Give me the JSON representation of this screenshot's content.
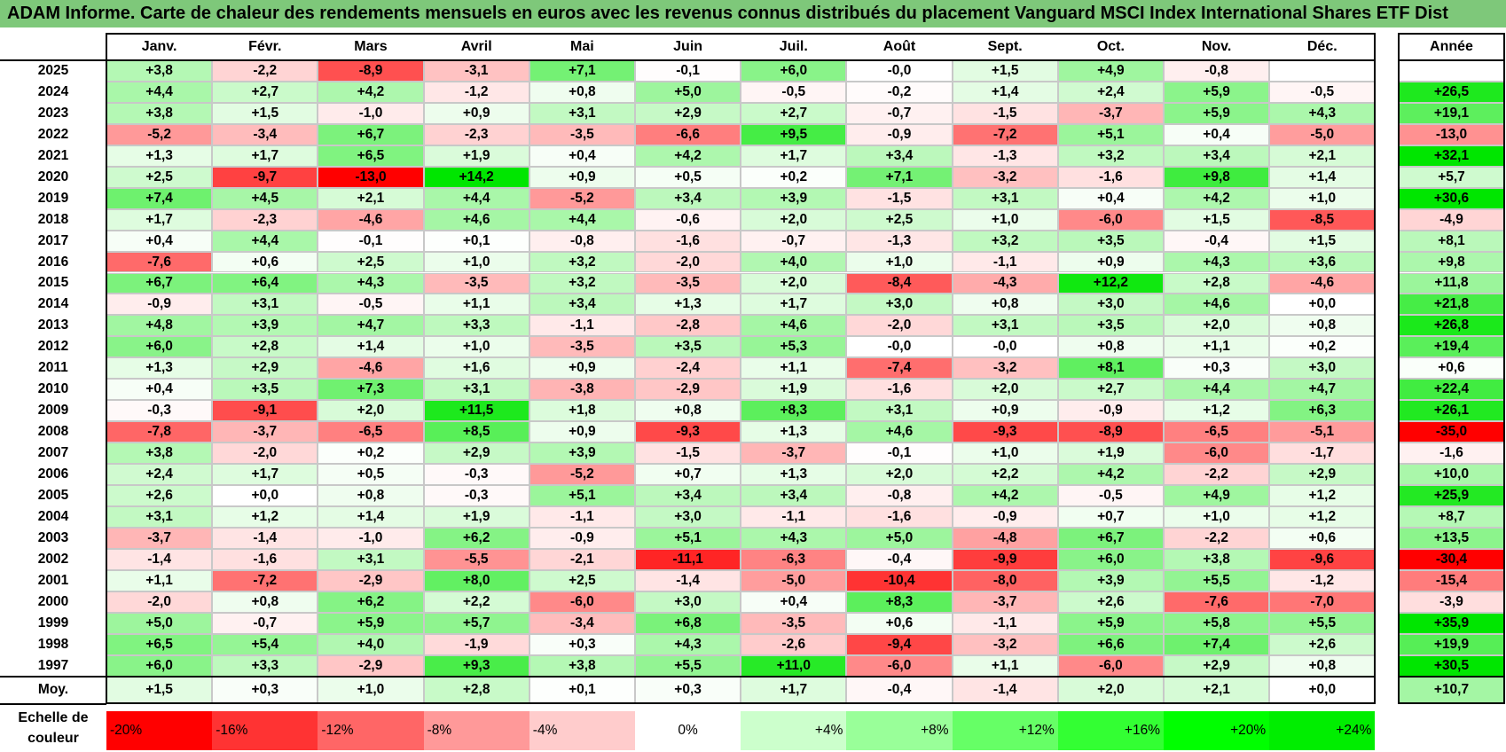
{
  "title": "ADAM Informe. Carte de chaleur des rendements mensuels en euros avec les revenus connus distribués du placement Vanguard MSCI Index International Shares ETF Dist",
  "chart_data": {
    "type": "heatmap",
    "title": "ADAM Informe. Carte de chaleur des rendements mensuels en euros avec les revenus connus distribués du placement Vanguard MSCI Index International Shares ETF Dist",
    "months": [
      "Janv.",
      "Févr.",
      "Mars",
      "Avril",
      "Mai",
      "Juin",
      "Juil.",
      "Août",
      "Sept.",
      "Oct.",
      "Nov.",
      "Déc."
    ],
    "year_header": "Année",
    "rows": [
      {
        "year": "2025",
        "values": [
          "+3,8",
          "-2,2",
          "-8,9",
          "-3,1",
          "+7,1",
          "-0,1",
          "+6,0",
          "-0,0",
          "+1,5",
          "+4,9",
          "-0,8",
          ""
        ],
        "annual": ""
      },
      {
        "year": "2024",
        "values": [
          "+4,4",
          "+2,7",
          "+4,2",
          "-1,2",
          "+0,8",
          "+5,0",
          "-0,5",
          "-0,2",
          "+1,4",
          "+2,4",
          "+5,9",
          "-0,5"
        ],
        "annual": "+26,5"
      },
      {
        "year": "2023",
        "values": [
          "+3,8",
          "+1,5",
          "-1,0",
          "+0,9",
          "+3,1",
          "+2,9",
          "+2,7",
          "-0,7",
          "-1,5",
          "-3,7",
          "+5,9",
          "+4,3"
        ],
        "annual": "+19,1"
      },
      {
        "year": "2022",
        "values": [
          "-5,2",
          "-3,4",
          "+6,7",
          "-2,3",
          "-3,5",
          "-6,6",
          "+9,5",
          "-0,9",
          "-7,2",
          "+5,1",
          "+0,4",
          "-5,0"
        ],
        "annual": "-13,0"
      },
      {
        "year": "2021",
        "values": [
          "+1,3",
          "+1,7",
          "+6,5",
          "+1,9",
          "+0,4",
          "+4,2",
          "+1,7",
          "+3,4",
          "-1,3",
          "+3,2",
          "+3,4",
          "+2,1"
        ],
        "annual": "+32,1"
      },
      {
        "year": "2020",
        "values": [
          "+2,5",
          "-9,7",
          "-13,0",
          "+14,2",
          "+0,9",
          "+0,5",
          "+0,2",
          "+7,1",
          "-3,2",
          "-1,6",
          "+9,8",
          "+1,4"
        ],
        "annual": "+5,7"
      },
      {
        "year": "2019",
        "values": [
          "+7,4",
          "+4,5",
          "+2,1",
          "+4,4",
          "-5,2",
          "+3,4",
          "+3,9",
          "-1,5",
          "+3,1",
          "+0,4",
          "+4,2",
          "+1,0"
        ],
        "annual": "+30,6"
      },
      {
        "year": "2018",
        "values": [
          "+1,7",
          "-2,3",
          "-4,6",
          "+4,6",
          "+4,4",
          "-0,6",
          "+2,0",
          "+2,5",
          "+1,0",
          "-6,0",
          "+1,5",
          "-8,5"
        ],
        "annual": "-4,9"
      },
      {
        "year": "2017",
        "values": [
          "+0,4",
          "+4,4",
          "-0,1",
          "+0,1",
          "-0,8",
          "-1,6",
          "-0,7",
          "-1,3",
          "+3,2",
          "+3,5",
          "-0,4",
          "+1,5"
        ],
        "annual": "+8,1"
      },
      {
        "year": "2016",
        "values": [
          "-7,6",
          "+0,6",
          "+2,5",
          "+1,0",
          "+3,2",
          "-2,0",
          "+4,0",
          "+1,0",
          "-1,1",
          "+0,9",
          "+4,3",
          "+3,6"
        ],
        "annual": "+9,8"
      },
      {
        "year": "2015",
        "values": [
          "+6,7",
          "+6,4",
          "+4,3",
          "-3,5",
          "+3,2",
          "-3,5",
          "+2,0",
          "-8,4",
          "-4,3",
          "+12,2",
          "+2,8",
          "-4,6"
        ],
        "annual": "+11,8"
      },
      {
        "year": "2014",
        "values": [
          "-0,9",
          "+3,1",
          "-0,5",
          "+1,1",
          "+3,4",
          "+1,3",
          "+1,7",
          "+3,0",
          "+0,8",
          "+3,0",
          "+4,6",
          "+0,0"
        ],
        "annual": "+21,8"
      },
      {
        "year": "2013",
        "values": [
          "+4,8",
          "+3,9",
          "+4,7",
          "+3,3",
          "-1,1",
          "-2,8",
          "+4,6",
          "-2,0",
          "+3,1",
          "+3,5",
          "+2,0",
          "+0,8"
        ],
        "annual": "+26,8"
      },
      {
        "year": "2012",
        "values": [
          "+6,0",
          "+2,8",
          "+1,4",
          "+1,0",
          "-3,5",
          "+3,5",
          "+5,3",
          "-0,0",
          "-0,0",
          "+0,8",
          "+1,1",
          "+0,2"
        ],
        "annual": "+19,4"
      },
      {
        "year": "2011",
        "values": [
          "+1,3",
          "+2,9",
          "-4,6",
          "+1,6",
          "+0,9",
          "-2,4",
          "+1,1",
          "-7,4",
          "-3,2",
          "+8,1",
          "+0,3",
          "+3,0"
        ],
        "annual": "+0,6"
      },
      {
        "year": "2010",
        "values": [
          "+0,4",
          "+3,5",
          "+7,3",
          "+3,1",
          "-3,8",
          "-2,9",
          "+1,9",
          "-1,6",
          "+2,0",
          "+2,7",
          "+4,4",
          "+4,7"
        ],
        "annual": "+22,4"
      },
      {
        "year": "2009",
        "values": [
          "-0,3",
          "-9,1",
          "+2,0",
          "+11,5",
          "+1,8",
          "+0,8",
          "+8,3",
          "+3,1",
          "+0,9",
          "-0,9",
          "+1,2",
          "+6,3"
        ],
        "annual": "+26,1"
      },
      {
        "year": "2008",
        "values": [
          "-7,8",
          "-3,7",
          "-6,5",
          "+8,5",
          "+0,9",
          "-9,3",
          "+1,3",
          "+4,6",
          "-9,3",
          "-8,9",
          "-6,5",
          "-5,1"
        ],
        "annual": "-35,0"
      },
      {
        "year": "2007",
        "values": [
          "+3,8",
          "-2,0",
          "+0,2",
          "+2,9",
          "+3,9",
          "-1,5",
          "-3,7",
          "-0,1",
          "+1,0",
          "+1,9",
          "-6,0",
          "-1,7"
        ],
        "annual": "-1,6"
      },
      {
        "year": "2006",
        "values": [
          "+2,4",
          "+1,7",
          "+0,5",
          "-0,3",
          "-5,2",
          "+0,7",
          "+1,3",
          "+2,0",
          "+2,2",
          "+4,2",
          "-2,2",
          "+2,9"
        ],
        "annual": "+10,0"
      },
      {
        "year": "2005",
        "values": [
          "+2,6",
          "+0,0",
          "+0,8",
          "-0,3",
          "+5,1",
          "+3,4",
          "+3,4",
          "-0,8",
          "+4,2",
          "-0,5",
          "+4,9",
          "+1,2"
        ],
        "annual": "+25,9"
      },
      {
        "year": "2004",
        "values": [
          "+3,1",
          "+1,2",
          "+1,4",
          "+1,9",
          "-1,1",
          "+3,0",
          "-1,1",
          "-1,6",
          "-0,9",
          "+0,7",
          "+1,0",
          "+1,2"
        ],
        "annual": "+8,7"
      },
      {
        "year": "2003",
        "values": [
          "-3,7",
          "-1,4",
          "-1,0",
          "+6,2",
          "-0,9",
          "+5,1",
          "+4,3",
          "+5,0",
          "-4,8",
          "+6,7",
          "-2,2",
          "+0,6"
        ],
        "annual": "+13,5"
      },
      {
        "year": "2002",
        "values": [
          "-1,4",
          "-1,6",
          "+3,1",
          "-5,5",
          "-2,1",
          "-11,1",
          "-6,3",
          "-0,4",
          "-9,9",
          "+6,0",
          "+3,8",
          "-9,6"
        ],
        "annual": "-30,4"
      },
      {
        "year": "2001",
        "values": [
          "+1,1",
          "-7,2",
          "-2,9",
          "+8,0",
          "+2,5",
          "-1,4",
          "-5,0",
          "-10,4",
          "-8,0",
          "+3,9",
          "+5,5",
          "-1,2"
        ],
        "annual": "-15,4"
      },
      {
        "year": "2000",
        "values": [
          "-2,0",
          "+0,8",
          "+6,2",
          "+2,2",
          "-6,0",
          "+3,0",
          "+0,4",
          "+8,3",
          "-3,7",
          "+2,6",
          "-7,6",
          "-7,0"
        ],
        "annual": "-3,9"
      },
      {
        "year": "1999",
        "values": [
          "+5,0",
          "-0,7",
          "+5,9",
          "+5,7",
          "-3,4",
          "+6,8",
          "-3,5",
          "+0,6",
          "-1,1",
          "+5,9",
          "+5,8",
          "+5,5"
        ],
        "annual": "+35,9"
      },
      {
        "year": "1998",
        "values": [
          "+6,5",
          "+5,4",
          "+4,0",
          "-1,9",
          "+0,3",
          "+4,3",
          "-2,6",
          "-9,4",
          "-3,2",
          "+6,6",
          "+7,4",
          "+2,6"
        ],
        "annual": "+19,9"
      },
      {
        "year": "1997",
        "values": [
          "+6,0",
          "+3,3",
          "-2,9",
          "+9,3",
          "+3,8",
          "+5,5",
          "+11,0",
          "-6,0",
          "+1,1",
          "-6,0",
          "+2,9",
          "+0,8"
        ],
        "annual": "+30,5"
      }
    ],
    "average": {
      "label": "Moy.",
      "values": [
        "+1,5",
        "+0,3",
        "+1,0",
        "+2,8",
        "+0,1",
        "+0,3",
        "+1,7",
        "-0,4",
        "-1,4",
        "+2,0",
        "+2,1",
        "+0,0"
      ],
      "annual": "+10,7"
    },
    "scale": {
      "label_line1": "Echelle de",
      "label_line2": "couleur",
      "steps": [
        {
          "label": "-20%",
          "color": "#ff0000"
        },
        {
          "label": "-16%",
          "color": "#ff3333"
        },
        {
          "label": "-12%",
          "color": "#ff6666"
        },
        {
          "label": "-8%",
          "color": "#ff9999"
        },
        {
          "label": "-4%",
          "color": "#ffcccc"
        },
        {
          "label": "0%",
          "color": "#ffffff"
        },
        {
          "label": "+4%",
          "color": "#ccffcc"
        },
        {
          "label": "+8%",
          "color": "#99ff99"
        },
        {
          "label": "+12%",
          "color": "#66ff66"
        },
        {
          "label": "+16%",
          "color": "#33ff33"
        },
        {
          "label": "+20%",
          "color": "#00ff00"
        },
        {
          "label": "+24%",
          "color": "#00ee00"
        }
      ]
    },
    "colors": {
      "title_bg": "#7ec87a",
      "negative_max": "#ff0000",
      "positive_max": "#00e600",
      "neutral": "#ffffff"
    }
  }
}
